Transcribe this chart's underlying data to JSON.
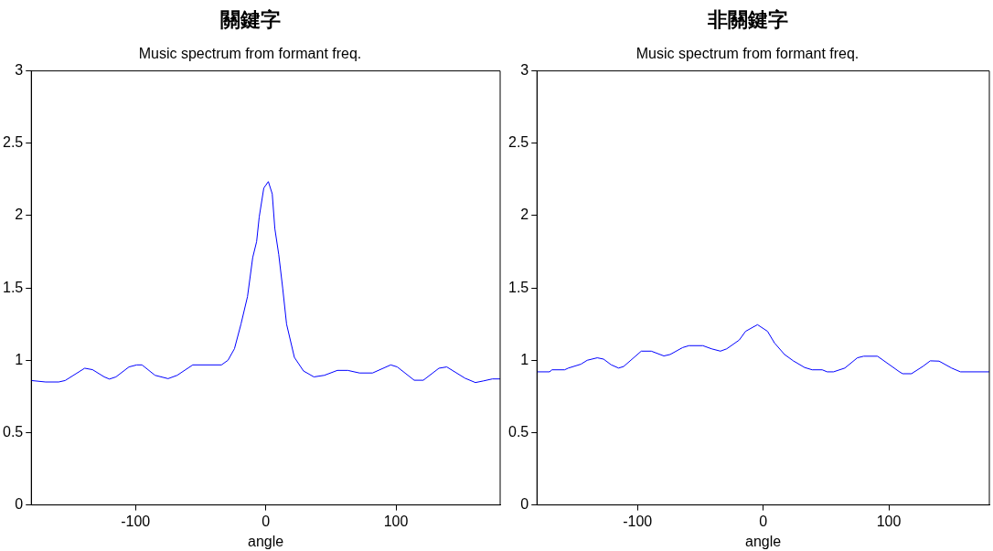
{
  "chart_data": [
    {
      "type": "line",
      "title": "關鍵字",
      "subtitle": "Music spectrum from formant freq.",
      "xlabel": "angle",
      "xlim": [
        -180,
        180
      ],
      "xticks": [
        -100,
        0,
        100
      ],
      "ylim": [
        0,
        3
      ],
      "yticks": [
        0,
        0.5,
        1,
        1.5,
        2,
        2.5,
        3
      ],
      "marker": "none",
      "series": [
        {
          "color": "#0000ff",
          "x": [
            -180,
            -169,
            -159,
            -154,
            -139,
            -133,
            -124,
            -120,
            -115,
            -105,
            -99,
            -95,
            -85,
            -75,
            -68,
            -56,
            -34,
            -29,
            -24,
            -19,
            -14,
            -10,
            -7,
            -5,
            -1.5,
            2,
            5,
            7,
            10,
            13,
            16,
            22,
            29,
            37,
            45,
            55,
            63,
            72,
            82,
            96,
            101,
            114,
            121,
            133,
            139,
            153,
            161,
            167,
            174,
            180
          ],
          "values": [
            0.86,
            0.85,
            0.85,
            0.86,
            0.945,
            0.935,
            0.885,
            0.87,
            0.885,
            0.954,
            0.968,
            0.968,
            0.896,
            0.873,
            0.896,
            0.968,
            0.968,
            1.0,
            1.08,
            1.25,
            1.44,
            1.71,
            1.82,
            1.99,
            2.19,
            2.235,
            2.15,
            1.91,
            1.73,
            1.5,
            1.25,
            1.02,
            0.926,
            0.885,
            0.896,
            0.93,
            0.93,
            0.912,
            0.912,
            0.968,
            0.954,
            0.862,
            0.862,
            0.945,
            0.954,
            0.876,
            0.846,
            0.857,
            0.871,
            0.871
          ]
        }
      ]
    },
    {
      "type": "line",
      "title": "非關鍵字",
      "subtitle": "Music spectrum from formant freq.",
      "xlabel": "angle",
      "xlim": [
        -180,
        180
      ],
      "xticks": [
        -100,
        0,
        100
      ],
      "ylim": [
        0,
        3
      ],
      "yticks": [
        0,
        0.5,
        1,
        1.5,
        2,
        2.5,
        3
      ],
      "marker": "none",
      "series": [
        {
          "color": "#0000ff",
          "x": [
            -180,
            -170,
            -168,
            -158,
            -155,
            -145,
            -140,
            -132,
            -127,
            -121,
            -115,
            -111,
            -97,
            -89,
            -79,
            -74,
            -64,
            -59,
            -48,
            -41,
            -34,
            -29,
            -19,
            -14,
            -4.5,
            3.5,
            9,
            17,
            24,
            33,
            39,
            47,
            51,
            56,
            65,
            75,
            80,
            91,
            108,
            111,
            118,
            127,
            133,
            140,
            150,
            157,
            180
          ],
          "values": [
            0.92,
            0.92,
            0.934,
            0.934,
            0.946,
            0.973,
            1.0,
            1.017,
            1.008,
            0.969,
            0.946,
            0.957,
            1.063,
            1.063,
            1.03,
            1.04,
            1.088,
            1.101,
            1.101,
            1.079,
            1.063,
            1.079,
            1.14,
            1.2,
            1.246,
            1.2,
            1.12,
            1.04,
            0.996,
            0.95,
            0.934,
            0.934,
            0.92,
            0.92,
            0.946,
            1.017,
            1.028,
            1.028,
            0.923,
            0.907,
            0.907,
            0.957,
            0.996,
            0.994,
            0.946,
            0.92,
            0.92
          ]
        }
      ]
    }
  ]
}
